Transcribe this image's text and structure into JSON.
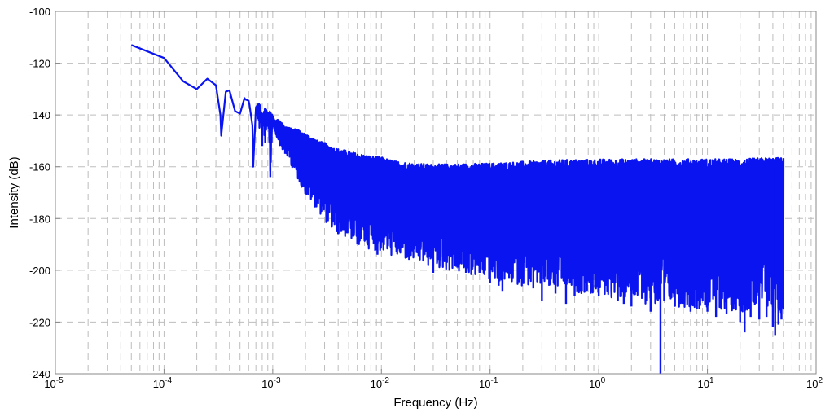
{
  "chart_data": {
    "type": "line",
    "xlabel": "Frequency (Hz)",
    "ylabel": "Intensity (dB)",
    "xscale": "log",
    "xlim": [
      1e-05,
      100
    ],
    "ylim": [
      -240,
      -100
    ],
    "grid": true,
    "legend": "none",
    "line_color": "#0a14f0",
    "x_tick_labels": [
      {
        "base": "10",
        "exp": "-5"
      },
      {
        "base": "10",
        "exp": "-4"
      },
      {
        "base": "10",
        "exp": "-3"
      },
      {
        "base": "10",
        "exp": "-2"
      },
      {
        "base": "10",
        "exp": "-1"
      },
      {
        "base": "10",
        "exp": "0"
      },
      {
        "base": "10",
        "exp": "1"
      },
      {
        "base": "10",
        "exp": "2"
      }
    ],
    "y_tick_labels": [
      "-100",
      "-120",
      "-140",
      "-160",
      "-180",
      "-200",
      "-220",
      "-240"
    ],
    "series": [
      {
        "x": [
          5e-05,
          0.0001,
          0.00015,
          0.0002,
          0.00025,
          0.0003,
          0.00033,
          0.00037,
          0.0004,
          0.00045,
          0.0005,
          0.00055,
          0.0006,
          0.00065,
          0.0007,
          0.00075,
          0.0008,
          0.00085,
          0.0009,
          0.00095,
          0.001,
          0.00105,
          0.0011,
          0.0012,
          0.0013,
          0.0014,
          0.0015,
          0.0016,
          0.0017,
          0.0018,
          0.0019,
          0.002,
          0.0022,
          0.0024,
          0.0026,
          0.0028,
          0.003,
          0.0033,
          0.0036,
          0.004,
          0.0045,
          0.005,
          0.0055,
          0.006,
          0.007,
          0.008,
          0.01,
          0.013,
          0.016,
          0.02,
          0.03,
          0.05,
          0.08,
          0.1,
          0.2,
          0.5,
          1,
          2,
          3.7,
          5,
          10,
          20,
          35,
          45,
          50
        ],
        "upper": [
          -113,
          -118,
          -127,
          -130,
          -126,
          -128.5,
          -140,
          -131,
          -130.5,
          -138.5,
          -139.5,
          -133.5,
          -134.5,
          -144,
          -137,
          -136,
          -141,
          -138,
          -139.5,
          -140,
          -140.5,
          -143,
          -142,
          -143.5,
          -145.5,
          -145.5,
          -146.5,
          -146.5,
          -147,
          -148,
          -148.5,
          -149,
          -150,
          -151,
          -152,
          -152.5,
          -153,
          -154,
          -155,
          -155.5,
          -156,
          -156.5,
          -157,
          -157.5,
          -158,
          -158.5,
          -159,
          -160.5,
          -161,
          -161.5,
          -162,
          -162,
          -162,
          -162,
          -161.5,
          -161,
          -161,
          -161,
          -161,
          -161,
          -161,
          -161,
          -160.5,
          -160.5,
          -160.5
        ],
        "lower": [
          -113,
          -118,
          -127,
          -130,
          -126,
          -128.5,
          -148,
          -131,
          -130.5,
          -138.5,
          -139.5,
          -134,
          -136,
          -160,
          -137,
          -146,
          -141,
          -152,
          -143,
          -164,
          -141,
          -147,
          -149,
          -153,
          -155,
          -157,
          -160,
          -163,
          -165,
          -167,
          -169,
          -171,
          -173,
          -175,
          -177,
          -179,
          -181,
          -183,
          -185,
          -186,
          -187,
          -188,
          -189,
          -190,
          -191,
          -192,
          -193,
          -195,
          -196,
          -197,
          -199,
          -201,
          -203,
          -204,
          -206,
          -208,
          -210,
          -212,
          -214,
          -214,
          -215,
          -216,
          -216,
          -217,
          -217
        ],
        "dips": [
          [
            0.0008,
            -152
          ],
          [
            0.00095,
            -164
          ],
          [
            0.0011,
            -149
          ],
          [
            0.0013,
            -155
          ],
          [
            0.0015,
            -158
          ],
          [
            0.0018,
            -160
          ],
          [
            0.002,
            -163
          ],
          [
            0.0026,
            -166
          ],
          [
            0.003,
            -170
          ],
          [
            0.0035,
            -177
          ],
          [
            0.004,
            -186
          ],
          [
            0.0045,
            -177
          ],
          [
            0.005,
            -181
          ],
          [
            0.0055,
            -187
          ],
          [
            0.006,
            -190
          ],
          [
            0.007,
            -188
          ],
          [
            0.008,
            -180
          ],
          [
            0.009,
            -189
          ],
          [
            0.0092,
            -194
          ],
          [
            0.012,
            -188
          ],
          [
            0.013,
            -188
          ],
          [
            0.014,
            -191
          ],
          [
            0.016,
            -189
          ],
          [
            0.018,
            -196
          ],
          [
            0.02,
            -192
          ],
          [
            0.023,
            -191
          ],
          [
            0.025,
            -194
          ],
          [
            0.03,
            -201
          ],
          [
            0.035,
            -195
          ],
          [
            0.04,
            -197
          ],
          [
            0.05,
            -199
          ],
          [
            0.06,
            -201
          ],
          [
            0.08,
            -201
          ],
          [
            0.1,
            -205
          ],
          [
            0.12,
            -206
          ],
          [
            0.13,
            -208
          ],
          [
            0.15,
            -203
          ],
          [
            0.2,
            -205
          ],
          [
            0.25,
            -207
          ],
          [
            0.3,
            -212
          ],
          [
            0.35,
            -206
          ],
          [
            0.4,
            -209
          ],
          [
            0.5,
            -213
          ],
          [
            0.6,
            -210
          ],
          [
            0.7,
            -208
          ],
          [
            1.0,
            -210
          ],
          [
            1.2,
            -208
          ],
          [
            1.5,
            -212
          ],
          [
            1.7,
            -213
          ],
          [
            2.0,
            -214
          ],
          [
            2.5,
            -211
          ],
          [
            3.0,
            -216
          ],
          [
            3.5,
            -212
          ],
          [
            3.7,
            -240
          ],
          [
            4.0,
            -212
          ],
          [
            5.0,
            -214
          ],
          [
            6.0,
            -213
          ],
          [
            7.0,
            -216
          ],
          [
            8.0,
            -215
          ],
          [
            10,
            -216
          ],
          [
            12,
            -218
          ],
          [
            15,
            -217
          ],
          [
            20,
            -220
          ],
          [
            22,
            -224
          ],
          [
            25,
            -218
          ],
          [
            30,
            -219
          ],
          [
            35,
            -218
          ],
          [
            40,
            -222
          ],
          [
            42,
            -225
          ],
          [
            45,
            -221
          ],
          [
            48,
            -219
          ]
        ]
      }
    ]
  }
}
